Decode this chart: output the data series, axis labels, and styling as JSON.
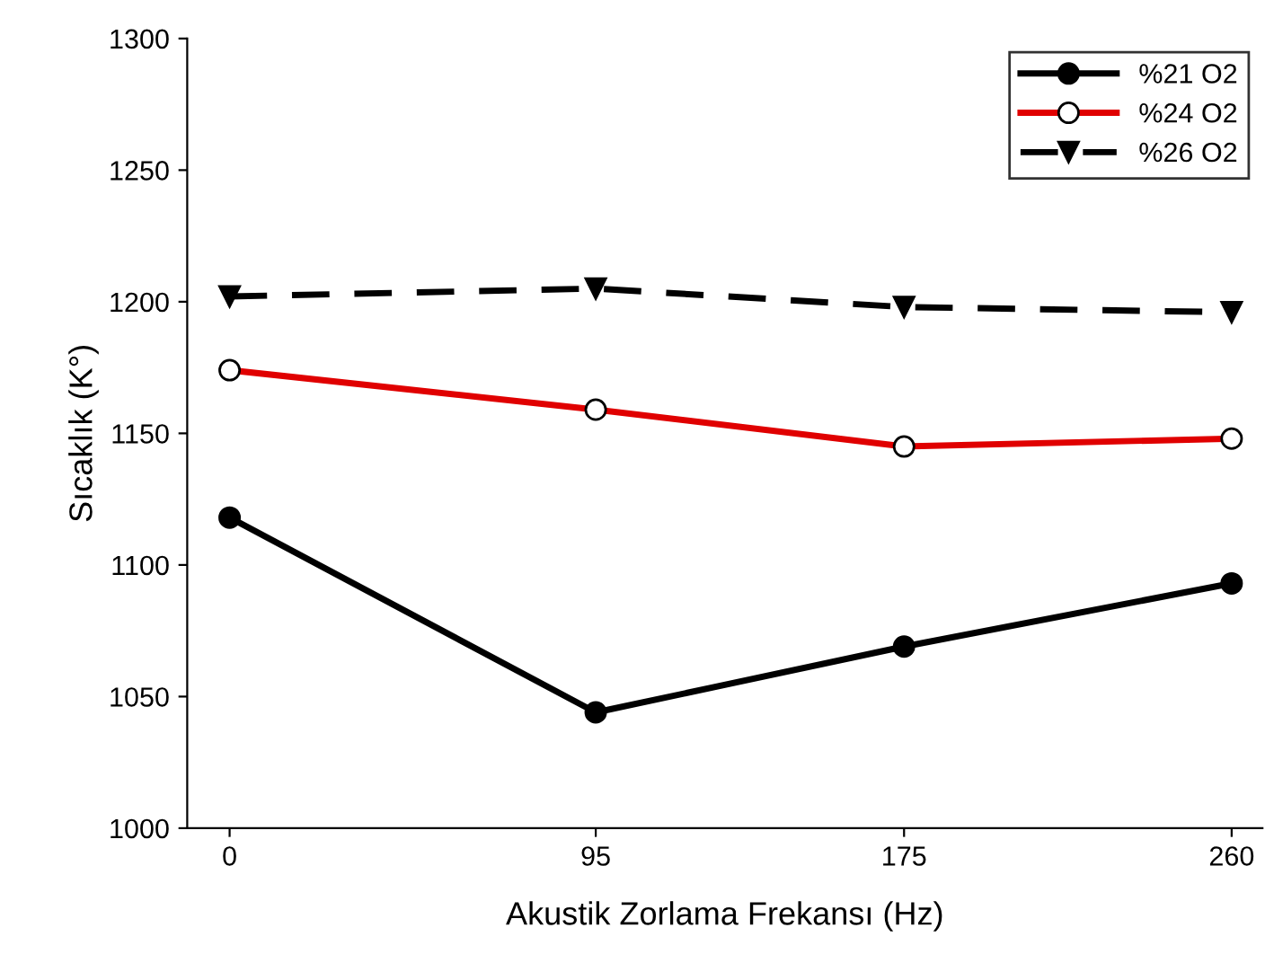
{
  "chart_data": {
    "type": "line",
    "xlabel": "Akustik Zorlama Frekansı (Hz)",
    "ylabel": "Sıcaklık (K°)",
    "x": [
      0,
      95,
      175,
      260
    ],
    "xlim": [
      -11,
      268
    ],
    "xticks": [
      0,
      95,
      175,
      260
    ],
    "ylim": [
      1000,
      1300
    ],
    "yticks": [
      1000,
      1050,
      1100,
      1150,
      1200,
      1250,
      1300
    ],
    "grid": false,
    "legend": "top right",
    "series": [
      {
        "name": "%21 O2",
        "color": "#000000",
        "marker": "circle",
        "line_style": "solid",
        "values": [
          1118,
          1044,
          1069,
          1093
        ]
      },
      {
        "name": "%24 O2",
        "color": "#e00000",
        "marker": "circle",
        "line_style": "solid",
        "values": [
          1174,
          1159,
          1145,
          1148
        ]
      },
      {
        "name": "%26 O2",
        "color": "#000000",
        "marker": "triangle",
        "line_style": "dashed",
        "values": [
          1202,
          1205,
          1198,
          1196
        ]
      }
    ]
  }
}
